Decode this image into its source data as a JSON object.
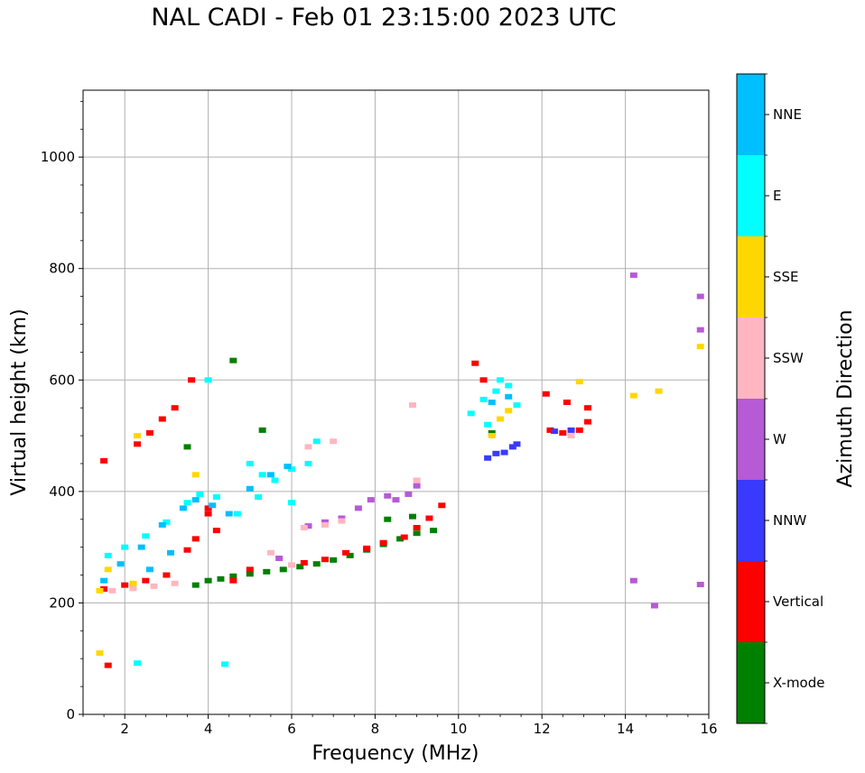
{
  "title": "NAL CADI - Feb 01 23:15:00 2023 UTC",
  "chart_data": {
    "type": "scatter",
    "title": "NAL CADI - Feb 01 23:15:00 2023 UTC",
    "xlabel": "Frequency (MHz)",
    "ylabel": "Virtual height (km)",
    "xlim": [
      1,
      16
    ],
    "ylim": [
      0,
      1120
    ],
    "xticks": [
      "2",
      "4",
      "6",
      "8",
      "10",
      "12",
      "14",
      "16"
    ],
    "yticks": [
      "0",
      "200",
      "400",
      "600",
      "800",
      "1000"
    ],
    "grid": true,
    "colorbar": {
      "label": "Azimuth Direction",
      "categories": [
        {
          "name": "X-mode",
          "color": "#008000"
        },
        {
          "name": "Vertical",
          "color": "#ff0000"
        },
        {
          "name": "NNW",
          "color": "#3a3aff"
        },
        {
          "name": "W",
          "color": "#b65ad6"
        },
        {
          "name": "SSW",
          "color": "#ffb6c1"
        },
        {
          "name": "SSE",
          "color": "#ffd700"
        },
        {
          "name": "E",
          "color": "#00ffff"
        },
        {
          "name": "NNE",
          "color": "#00bfff"
        }
      ]
    },
    "series": [
      {
        "name": "X-mode",
        "points": [
          [
            3.7,
            232
          ],
          [
            4.0,
            240
          ],
          [
            4.3,
            243
          ],
          [
            4.6,
            248
          ],
          [
            5.0,
            252
          ],
          [
            5.4,
            256
          ],
          [
            5.8,
            260
          ],
          [
            6.2,
            265
          ],
          [
            6.6,
            270
          ],
          [
            7.0,
            277
          ],
          [
            7.4,
            285
          ],
          [
            7.8,
            295
          ],
          [
            8.2,
            305
          ],
          [
            8.6,
            315
          ],
          [
            9.0,
            325
          ],
          [
            9.4,
            330
          ],
          [
            8.3,
            350
          ],
          [
            8.9,
            355
          ],
          [
            4.6,
            635
          ],
          [
            5.3,
            510
          ],
          [
            3.5,
            480
          ],
          [
            10.8,
            505
          ]
        ]
      },
      {
        "name": "Vertical",
        "points": [
          [
            1.5,
            225
          ],
          [
            2.0,
            232
          ],
          [
            2.5,
            240
          ],
          [
            3.0,
            250
          ],
          [
            3.5,
            295
          ],
          [
            3.7,
            315
          ],
          [
            4.0,
            370
          ],
          [
            4.2,
            330
          ],
          [
            4.6,
            240
          ],
          [
            6.3,
            272
          ],
          [
            6.8,
            278
          ],
          [
            7.3,
            290
          ],
          [
            7.8,
            298
          ],
          [
            8.2,
            308
          ],
          [
            8.7,
            318
          ],
          [
            9.0,
            335
          ],
          [
            9.3,
            352
          ],
          [
            9.6,
            375
          ],
          [
            2.3,
            485
          ],
          [
            2.6,
            505
          ],
          [
            2.9,
            530
          ],
          [
            3.2,
            550
          ],
          [
            3.6,
            600
          ],
          [
            1.5,
            455
          ],
          [
            10.4,
            630
          ],
          [
            10.6,
            600
          ],
          [
            12.2,
            510
          ],
          [
            12.5,
            505
          ],
          [
            12.9,
            510
          ],
          [
            13.1,
            525
          ],
          [
            13.1,
            550
          ],
          [
            12.1,
            575
          ],
          [
            12.6,
            560
          ],
          [
            4.0,
            360
          ],
          [
            5.0,
            260
          ],
          [
            1.6,
            88
          ]
        ]
      },
      {
        "name": "NNW",
        "points": [
          [
            10.9,
            468
          ],
          [
            11.1,
            470
          ],
          [
            11.3,
            480
          ],
          [
            11.4,
            485
          ],
          [
            12.3,
            508
          ],
          [
            12.7,
            510
          ],
          [
            10.7,
            460
          ]
        ]
      },
      {
        "name": "W",
        "points": [
          [
            6.4,
            338
          ],
          [
            6.8,
            345
          ],
          [
            7.2,
            352
          ],
          [
            7.6,
            370
          ],
          [
            7.9,
            385
          ],
          [
            8.3,
            392
          ],
          [
            8.8,
            395
          ],
          [
            9.0,
            410
          ],
          [
            8.5,
            385
          ],
          [
            14.2,
            788
          ],
          [
            15.8,
            750
          ],
          [
            15.8,
            690
          ],
          [
            14.2,
            240
          ],
          [
            14.7,
            195
          ],
          [
            15.8,
            233
          ],
          [
            5.7,
            280
          ]
        ]
      },
      {
        "name": "SSW",
        "points": [
          [
            1.7,
            222
          ],
          [
            2.2,
            226
          ],
          [
            2.7,
            230
          ],
          [
            3.2,
            235
          ],
          [
            6.3,
            335
          ],
          [
            6.8,
            340
          ],
          [
            7.2,
            347
          ],
          [
            6.4,
            480
          ],
          [
            7.0,
            490
          ],
          [
            8.9,
            555
          ],
          [
            12.7,
            500
          ],
          [
            9.0,
            420
          ],
          [
            5.5,
            290
          ],
          [
            6.0,
            268
          ]
        ]
      },
      {
        "name": "SSE",
        "points": [
          [
            1.4,
            222
          ],
          [
            1.6,
            260
          ],
          [
            1.4,
            110
          ],
          [
            2.2,
            235
          ],
          [
            3.7,
            430
          ],
          [
            11.0,
            530
          ],
          [
            11.2,
            545
          ],
          [
            12.9,
            597
          ],
          [
            14.2,
            572
          ],
          [
            14.8,
            580
          ],
          [
            15.8,
            660
          ],
          [
            10.8,
            500
          ],
          [
            2.3,
            500
          ]
        ]
      },
      {
        "name": "E",
        "points": [
          [
            1.6,
            285
          ],
          [
            2.0,
            300
          ],
          [
            2.5,
            320
          ],
          [
            3.0,
            345
          ],
          [
            3.5,
            380
          ],
          [
            3.8,
            395
          ],
          [
            4.2,
            390
          ],
          [
            4.7,
            360
          ],
          [
            5.2,
            390
          ],
          [
            5.6,
            420
          ],
          [
            6.0,
            440
          ],
          [
            6.4,
            450
          ],
          [
            6.6,
            490
          ],
          [
            10.3,
            540
          ],
          [
            10.6,
            565
          ],
          [
            10.9,
            580
          ],
          [
            11.2,
            590
          ],
          [
            11.4,
            555
          ],
          [
            10.7,
            520
          ],
          [
            11.0,
            600
          ],
          [
            2.3,
            92
          ],
          [
            4.4,
            90
          ],
          [
            5.0,
            450
          ],
          [
            5.3,
            430
          ],
          [
            6.0,
            380
          ],
          [
            4.0,
            600
          ]
        ]
      },
      {
        "name": "NNE",
        "points": [
          [
            1.5,
            240
          ],
          [
            1.9,
            270
          ],
          [
            2.4,
            300
          ],
          [
            2.9,
            340
          ],
          [
            3.4,
            370
          ],
          [
            3.7,
            385
          ],
          [
            4.1,
            375
          ],
          [
            4.5,
            360
          ],
          [
            5.0,
            405
          ],
          [
            5.5,
            430
          ],
          [
            5.9,
            445
          ],
          [
            3.1,
            290
          ],
          [
            2.6,
            260
          ],
          [
            10.8,
            560
          ],
          [
            11.2,
            570
          ]
        ]
      }
    ]
  }
}
